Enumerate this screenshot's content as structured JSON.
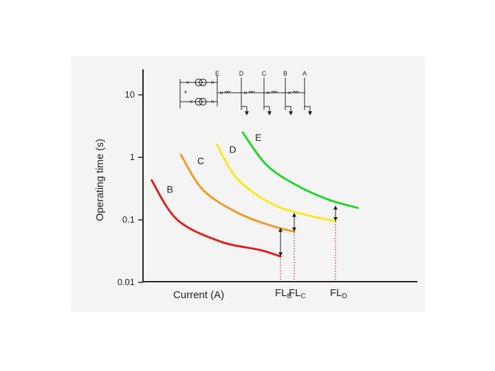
{
  "chart_data": {
    "type": "line",
    "title": "",
    "xlabel": "Current (A)",
    "ylabel": "Operating time (s)",
    "yscale": "log",
    "ylim": [
      0.01,
      10
    ],
    "yticks": [
      "10",
      "1",
      "0.1",
      "0.01"
    ],
    "series": [
      {
        "name": "B",
        "color": "#e01e1e",
        "points": [
          [
            0.05,
            0.43
          ],
          [
            0.2,
            0.1
          ],
          [
            0.45,
            0.045
          ],
          [
            0.68,
            0.033
          ],
          [
            0.8,
            0.026
          ]
        ]
      },
      {
        "name": "C",
        "color": "#ef9a26",
        "points": [
          [
            0.22,
            1.1
          ],
          [
            0.35,
            0.3
          ],
          [
            0.55,
            0.13
          ],
          [
            0.75,
            0.08
          ],
          [
            0.88,
            0.065
          ]
        ]
      },
      {
        "name": "D",
        "color": "#f5ea1b",
        "points": [
          [
            0.43,
            1.6
          ],
          [
            0.55,
            0.45
          ],
          [
            0.75,
            0.18
          ],
          [
            0.95,
            0.12
          ],
          [
            1.12,
            0.095
          ]
        ]
      },
      {
        "name": "E",
        "color": "#22d62a",
        "points": [
          [
            0.58,
            2.5
          ],
          [
            0.72,
            0.75
          ],
          [
            0.9,
            0.35
          ],
          [
            1.08,
            0.21
          ],
          [
            1.25,
            0.155
          ]
        ]
      }
    ],
    "fault_levels": [
      {
        "label": "FL",
        "sub": "B",
        "x": 0.8,
        "t_low": 0.026,
        "t_high": 0.075
      },
      {
        "label": "FL",
        "sub": "C",
        "x": 0.88,
        "t_low": 0.065,
        "t_high": 0.13
      },
      {
        "label": "FL",
        "sub": "D",
        "x": 1.12,
        "t_low": 0.095,
        "t_high": 0.17
      }
    ]
  },
  "diagram": {
    "bus_labels": [
      "E",
      "D",
      "C",
      "B",
      "A"
    ]
  }
}
